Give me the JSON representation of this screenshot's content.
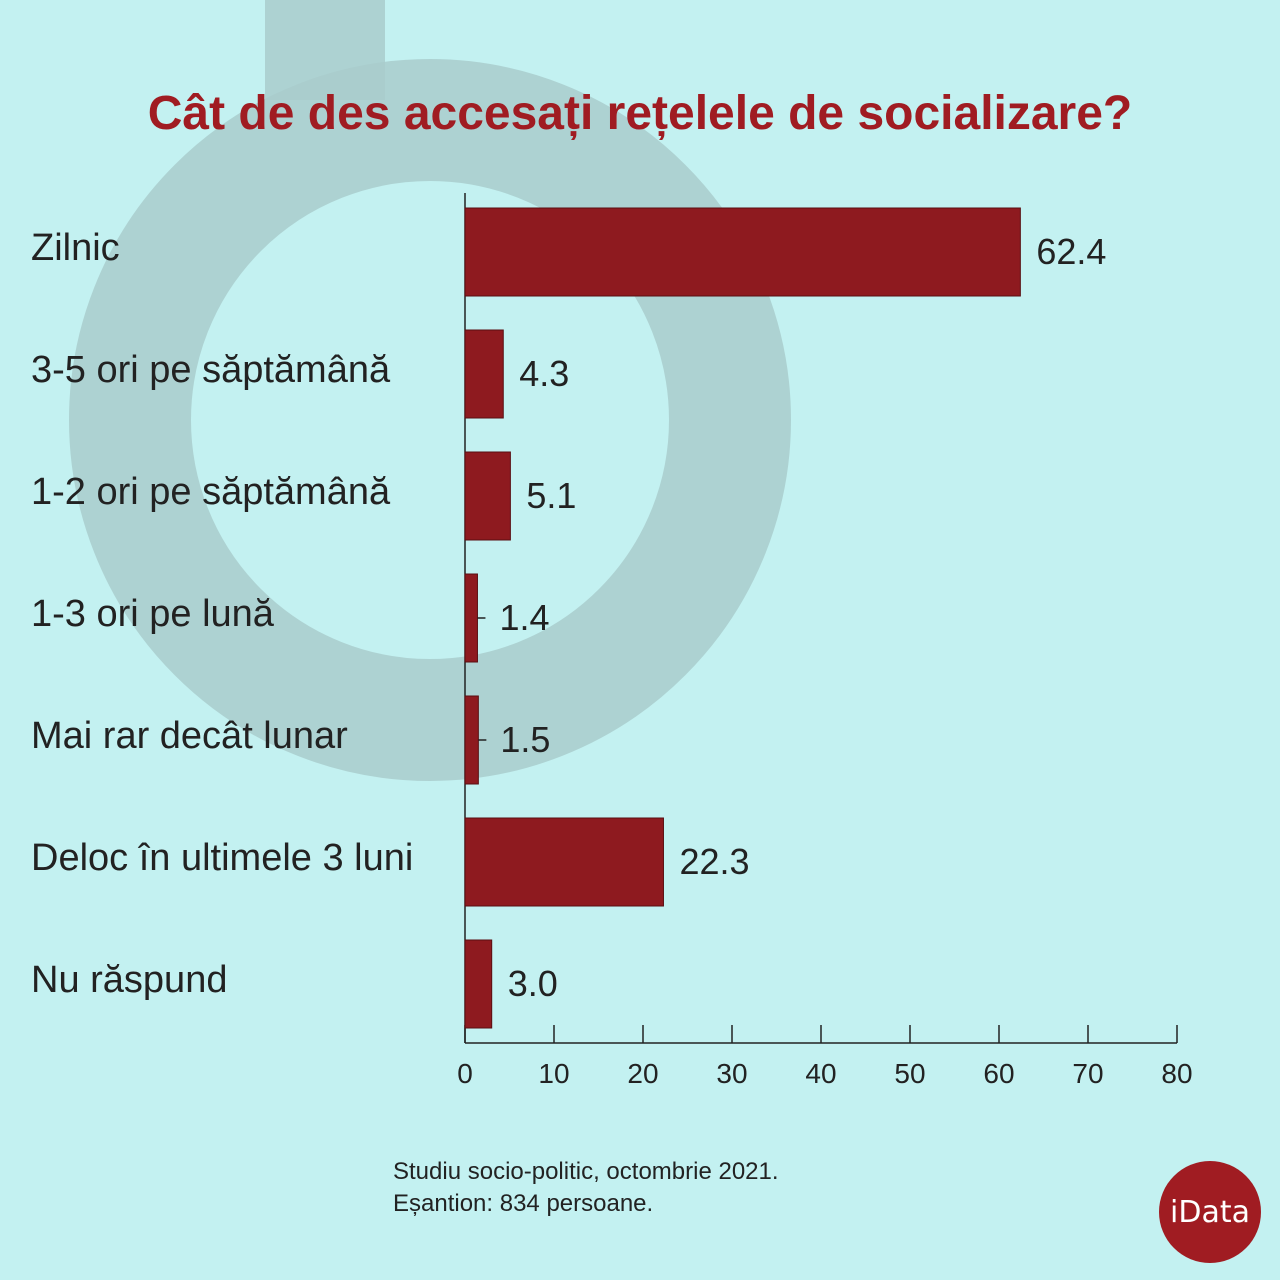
{
  "chart_data": {
    "type": "bar",
    "orientation": "horizontal",
    "title": "Cât de des accesați rețelele de socializare?",
    "categories": [
      "Zilnic",
      "3-5 ori pe săptămână",
      "1-2 ori pe săptămână",
      "1-3 ori pe lună",
      "Mai rar decât lunar",
      "Deloc în ultimele 3 luni",
      "Nu răspund"
    ],
    "values": [
      62.4,
      4.3,
      5.1,
      1.4,
      1.5,
      22.3,
      3.0
    ],
    "value_labels": [
      "62.4",
      "4.3",
      "5.1",
      "1.4",
      "1.5",
      "22.3",
      "3.0"
    ],
    "xlim": [
      0,
      80
    ],
    "xticks": [
      "0",
      "10",
      "20",
      "30",
      "40",
      "50",
      "60",
      "70",
      "80"
    ],
    "xlabel": "",
    "ylabel": "",
    "grid": false,
    "legend": "none",
    "bar_color": "#8e1a1f"
  },
  "source": {
    "line1": "Studiu socio-politic, octombrie 2021.",
    "line2": "Eșantion: 834 persoane."
  },
  "logo": {
    "text": "iData"
  },
  "colors": {
    "background": "#c3f1f1",
    "accent": "#a01c22"
  }
}
